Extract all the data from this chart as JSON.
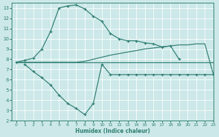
{
  "xlabel": "Humidex (Indice chaleur)",
  "bg_color": "#cce8e8",
  "line_color": "#2e7d72",
  "grid_color": "#ffffff",
  "xlim": [
    -0.5,
    23
  ],
  "ylim": [
    2,
    13.5
  ],
  "xticks": [
    0,
    1,
    2,
    3,
    4,
    5,
    6,
    7,
    8,
    9,
    10,
    11,
    12,
    13,
    14,
    15,
    16,
    17,
    18,
    19,
    20,
    21,
    22,
    23
  ],
  "yticks": [
    2,
    3,
    4,
    5,
    6,
    7,
    8,
    9,
    10,
    11,
    12,
    13
  ],
  "line1_x": [
    0,
    1,
    2,
    3,
    4,
    5,
    6,
    7,
    8,
    9,
    10,
    11,
    12,
    13,
    14,
    15,
    16,
    17,
    18,
    19,
    20,
    21
  ],
  "line1_y": [
    7.7,
    7.9,
    8.1,
    9.0,
    10.7,
    13.0,
    13.2,
    13.3,
    12.9,
    12.2,
    11.7,
    10.5,
    10.0,
    9.8,
    9.8,
    9.6,
    9.5,
    9.2,
    9.3,
    8.0,
    null,
    null
  ],
  "line2_x": [
    0,
    2,
    3,
    4,
    5,
    6,
    7,
    8,
    9,
    10,
    11,
    12,
    13,
    14,
    15,
    16,
    17,
    18,
    19,
    20,
    21,
    22,
    23
  ],
  "line2_y": [
    7.7,
    7.7,
    7.7,
    7.7,
    7.7,
    7.7,
    7.7,
    7.8,
    8.0,
    8.2,
    8.4,
    8.55,
    8.7,
    8.85,
    9.0,
    9.1,
    9.2,
    9.3,
    9.4,
    9.4,
    9.5,
    9.5,
    6.5
  ],
  "line3_x": [
    0,
    1,
    2,
    3,
    4,
    5,
    6,
    7,
    8,
    9,
    10,
    11,
    12,
    13,
    14,
    15,
    16,
    17,
    18,
    19,
    20,
    21,
    22,
    23
  ],
  "line3_y": [
    7.7,
    7.7,
    7.7,
    7.7,
    7.7,
    7.7,
    7.7,
    7.7,
    7.7,
    7.7,
    7.7,
    7.7,
    7.7,
    7.7,
    7.7,
    7.7,
    7.7,
    7.7,
    7.7,
    7.7,
    7.7,
    7.7,
    7.7,
    7.7
  ],
  "line4_x": [
    1,
    2,
    3,
    4,
    5,
    6,
    7,
    8,
    9,
    10,
    11,
    12,
    13,
    14,
    15,
    16,
    17,
    18,
    19,
    20,
    21,
    22,
    23
  ],
  "line4_y": [
    7.5,
    6.8,
    6.2,
    5.5,
    4.5,
    3.7,
    3.2,
    2.6,
    3.7,
    7.5,
    6.5,
    6.5,
    6.5,
    6.5,
    6.5,
    6.5,
    6.5,
    6.5,
    6.5,
    6.5,
    6.5,
    6.5,
    6.5
  ]
}
